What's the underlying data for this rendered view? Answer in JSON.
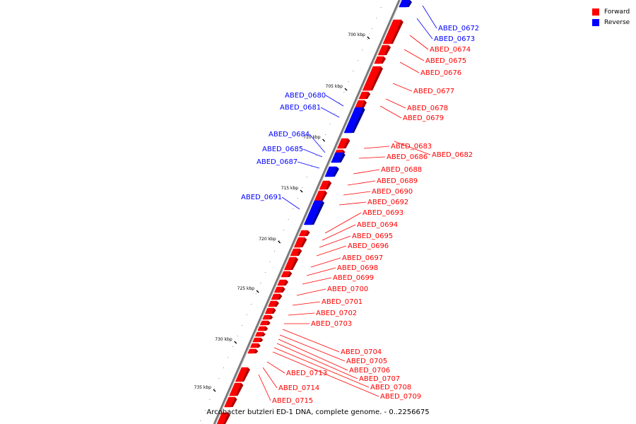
{
  "legend": {
    "forward_label": "Forward",
    "reverse_label": "Reverse",
    "forward_color": "#ff0000",
    "reverse_color": "#0000ff"
  },
  "caption": "Arcobacter butzleri ED-1 DNA, complete genome. - 0..2256675",
  "ruler_labels": [
    "700 kbp",
    "705 kbp",
    "710 kbp",
    "715 kbp",
    "720 kbp",
    "725 kbp",
    "730 kbp",
    "735 kbp"
  ],
  "genes": [
    {
      "name": "ABED_0672",
      "strand": "reverse"
    },
    {
      "name": "ABED_0673",
      "strand": "reverse"
    },
    {
      "name": "ABED_0674",
      "strand": "forward"
    },
    {
      "name": "ABED_0675",
      "strand": "forward"
    },
    {
      "name": "ABED_0676",
      "strand": "forward"
    },
    {
      "name": "ABED_0677",
      "strand": "forward"
    },
    {
      "name": "ABED_0678",
      "strand": "forward"
    },
    {
      "name": "ABED_0679",
      "strand": "forward"
    },
    {
      "name": "ABED_0680",
      "strand": "reverse"
    },
    {
      "name": "ABED_0681",
      "strand": "reverse"
    },
    {
      "name": "ABED_0682",
      "strand": "forward"
    },
    {
      "name": "ABED_0683",
      "strand": "forward"
    },
    {
      "name": "ABED_0684",
      "strand": "reverse"
    },
    {
      "name": "ABED_0685",
      "strand": "reverse"
    },
    {
      "name": "ABED_0686",
      "strand": "forward"
    },
    {
      "name": "ABED_0687",
      "strand": "reverse"
    },
    {
      "name": "ABED_0688",
      "strand": "forward"
    },
    {
      "name": "ABED_0689",
      "strand": "forward"
    },
    {
      "name": "ABED_0690",
      "strand": "forward"
    },
    {
      "name": "ABED_0691",
      "strand": "reverse"
    },
    {
      "name": "ABED_0692",
      "strand": "forward"
    },
    {
      "name": "ABED_0693",
      "strand": "forward"
    },
    {
      "name": "ABED_0694",
      "strand": "forward"
    },
    {
      "name": "ABED_0695",
      "strand": "forward"
    },
    {
      "name": "ABED_0696",
      "strand": "forward"
    },
    {
      "name": "ABED_0697",
      "strand": "forward"
    },
    {
      "name": "ABED_0698",
      "strand": "forward"
    },
    {
      "name": "ABED_0699",
      "strand": "forward"
    },
    {
      "name": "ABED_0700",
      "strand": "forward"
    },
    {
      "name": "ABED_0701",
      "strand": "forward"
    },
    {
      "name": "ABED_0702",
      "strand": "forward"
    },
    {
      "name": "ABED_0703",
      "strand": "forward"
    },
    {
      "name": "ABED_0704",
      "strand": "forward"
    },
    {
      "name": "ABED_0705",
      "strand": "forward"
    },
    {
      "name": "ABED_0706",
      "strand": "forward"
    },
    {
      "name": "ABED_0707",
      "strand": "forward"
    },
    {
      "name": "ABED_0708",
      "strand": "forward"
    },
    {
      "name": "ABED_0709",
      "strand": "forward"
    },
    {
      "name": "ABED_0713",
      "strand": "forward"
    },
    {
      "name": "ABED_0714",
      "strand": "forward"
    },
    {
      "name": "ABED_0715",
      "strand": "forward"
    }
  ]
}
